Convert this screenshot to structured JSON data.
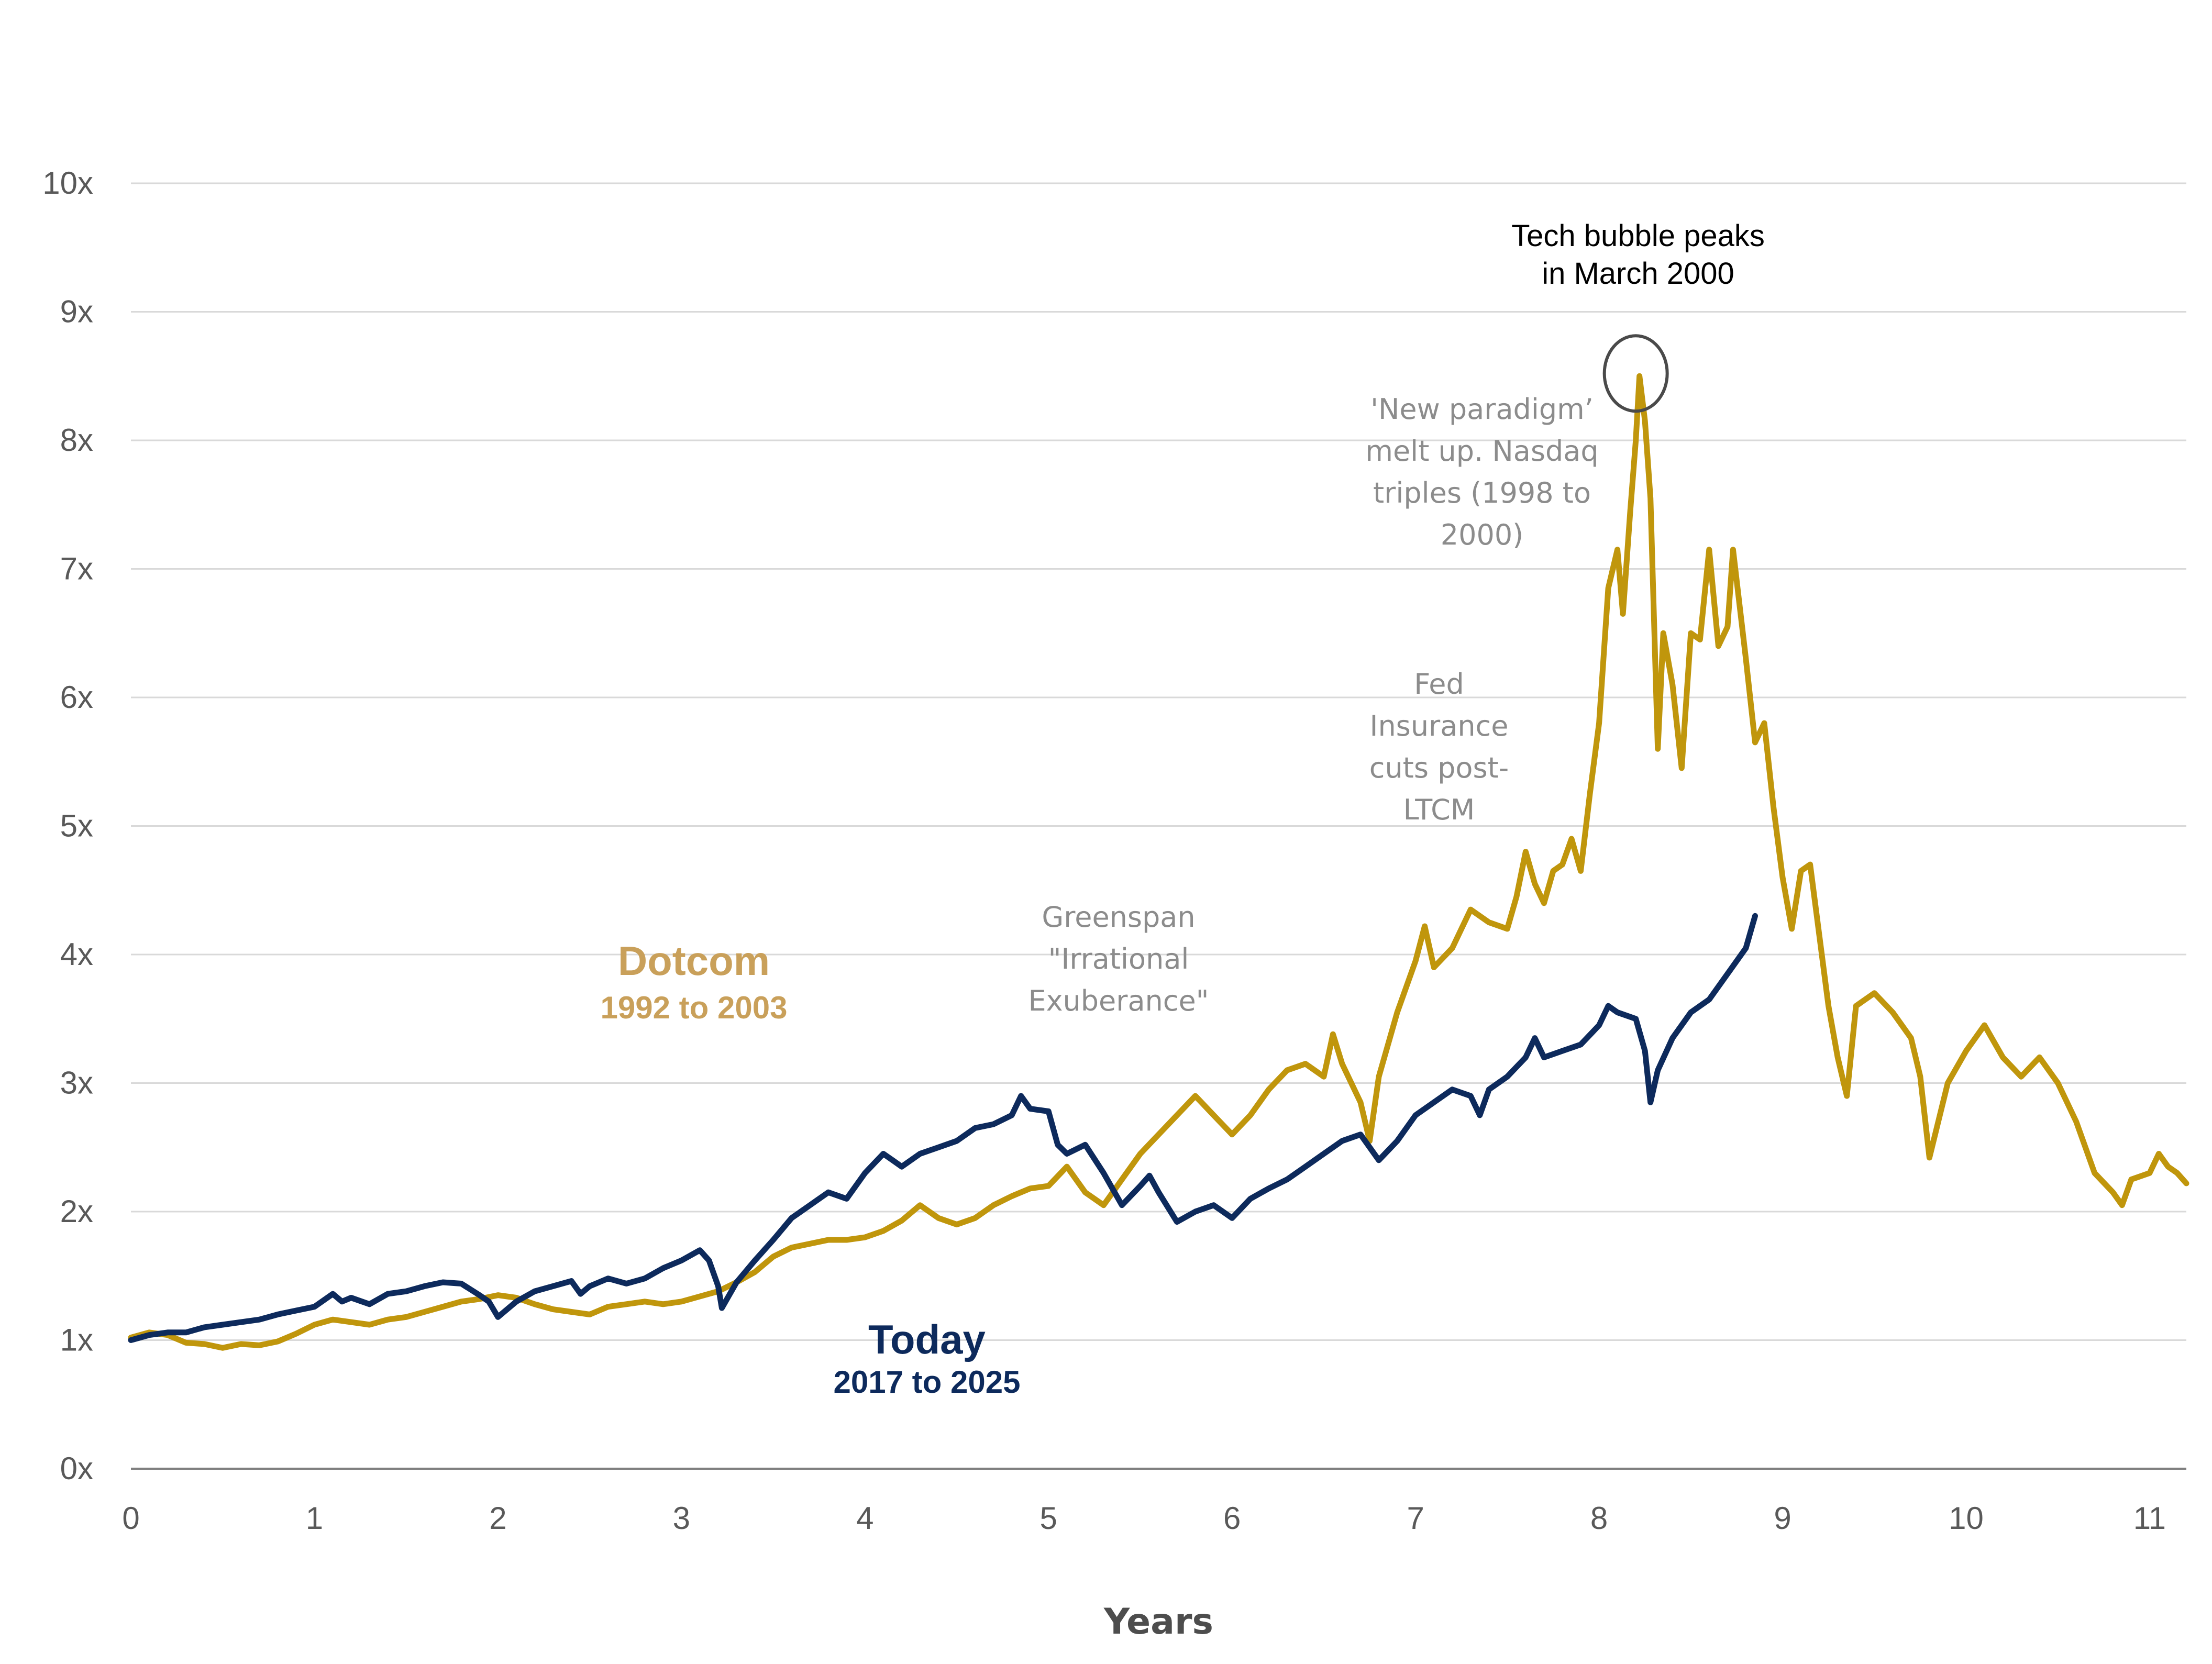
{
  "chart_data": {
    "type": "line",
    "title": "",
    "xlabel": "Years",
    "ylabel": "",
    "xlim": [
      0,
      11.2
    ],
    "ylim": [
      0,
      10
    ],
    "x_ticks": [
      0,
      1,
      2,
      3,
      4,
      5,
      6,
      7,
      8,
      9,
      10,
      11
    ],
    "y_ticks": [
      {
        "value": 0,
        "label": "0x"
      },
      {
        "value": 1,
        "label": "1x"
      },
      {
        "value": 2,
        "label": "2x"
      },
      {
        "value": 3,
        "label": "3x"
      },
      {
        "value": 4,
        "label": "4x"
      },
      {
        "value": 5,
        "label": "5x"
      },
      {
        "value": 6,
        "label": "6x"
      },
      {
        "value": 7,
        "label": "7x"
      },
      {
        "value": 8,
        "label": "8x"
      },
      {
        "value": 9,
        "label": "9x"
      },
      {
        "value": 10,
        "label": "10x"
      }
    ],
    "grid": true,
    "series": [
      {
        "name": "Dotcom",
        "period": "1992 to 2003",
        "color": "#c0960c",
        "label_color": "#c9a05a",
        "points": [
          [
            0,
            1.02
          ],
          [
            0.1,
            1.06
          ],
          [
            0.2,
            1.04
          ],
          [
            0.3,
            0.98
          ],
          [
            0.4,
            0.97
          ],
          [
            0.5,
            0.94
          ],
          [
            0.6,
            0.97
          ],
          [
            0.7,
            0.96
          ],
          [
            0.8,
            0.99
          ],
          [
            0.9,
            1.05
          ],
          [
            1.0,
            1.12
          ],
          [
            1.1,
            1.16
          ],
          [
            1.2,
            1.14
          ],
          [
            1.3,
            1.12
          ],
          [
            1.4,
            1.16
          ],
          [
            1.5,
            1.18
          ],
          [
            1.6,
            1.22
          ],
          [
            1.7,
            1.26
          ],
          [
            1.8,
            1.3
          ],
          [
            1.9,
            1.32
          ],
          [
            2.0,
            1.35
          ],
          [
            2.1,
            1.33
          ],
          [
            2.2,
            1.28
          ],
          [
            2.3,
            1.24
          ],
          [
            2.4,
            1.22
          ],
          [
            2.5,
            1.2
          ],
          [
            2.6,
            1.26
          ],
          [
            2.7,
            1.28
          ],
          [
            2.8,
            1.3
          ],
          [
            2.9,
            1.28
          ],
          [
            3.0,
            1.3
          ],
          [
            3.1,
            1.34
          ],
          [
            3.2,
            1.38
          ],
          [
            3.3,
            1.45
          ],
          [
            3.4,
            1.53
          ],
          [
            3.5,
            1.65
          ],
          [
            3.6,
            1.72
          ],
          [
            3.7,
            1.75
          ],
          [
            3.8,
            1.78
          ],
          [
            3.9,
            1.78
          ],
          [
            4.0,
            1.8
          ],
          [
            4.1,
            1.85
          ],
          [
            4.2,
            1.93
          ],
          [
            4.3,
            2.05
          ],
          [
            4.4,
            1.95
          ],
          [
            4.5,
            1.9
          ],
          [
            4.6,
            1.95
          ],
          [
            4.7,
            2.05
          ],
          [
            4.8,
            2.12
          ],
          [
            4.9,
            2.18
          ],
          [
            5.0,
            2.2
          ],
          [
            5.1,
            2.35
          ],
          [
            5.2,
            2.15
          ],
          [
            5.3,
            2.05
          ],
          [
            5.4,
            2.25
          ],
          [
            5.5,
            2.45
          ],
          [
            5.6,
            2.6
          ],
          [
            5.7,
            2.75
          ],
          [
            5.8,
            2.9
          ],
          [
            5.9,
            2.75
          ],
          [
            6.0,
            2.6
          ],
          [
            6.1,
            2.75
          ],
          [
            6.2,
            2.95
          ],
          [
            6.3,
            3.1
          ],
          [
            6.4,
            3.15
          ],
          [
            6.5,
            3.05
          ],
          [
            6.55,
            3.38
          ],
          [
            6.6,
            3.15
          ],
          [
            6.7,
            2.85
          ],
          [
            6.75,
            2.55
          ],
          [
            6.8,
            3.05
          ],
          [
            6.9,
            3.55
          ],
          [
            7.0,
            3.95
          ],
          [
            7.05,
            4.22
          ],
          [
            7.1,
            3.9
          ],
          [
            7.2,
            4.05
          ],
          [
            7.3,
            4.35
          ],
          [
            7.4,
            4.25
          ],
          [
            7.5,
            4.2
          ],
          [
            7.55,
            4.45
          ],
          [
            7.6,
            4.8
          ],
          [
            7.65,
            4.55
          ],
          [
            7.7,
            4.4
          ],
          [
            7.75,
            4.65
          ],
          [
            7.8,
            4.7
          ],
          [
            7.85,
            4.9
          ],
          [
            7.9,
            4.65
          ],
          [
            7.95,
            5.25
          ],
          [
            8.0,
            5.8
          ],
          [
            8.05,
            6.85
          ],
          [
            8.1,
            7.15
          ],
          [
            8.13,
            6.65
          ],
          [
            8.17,
            7.45
          ],
          [
            8.2,
            8.0
          ],
          [
            8.22,
            8.5
          ],
          [
            8.25,
            8.15
          ],
          [
            8.28,
            7.55
          ],
          [
            8.32,
            5.6
          ],
          [
            8.35,
            6.5
          ],
          [
            8.4,
            6.1
          ],
          [
            8.45,
            5.45
          ],
          [
            8.5,
            6.5
          ],
          [
            8.55,
            6.45
          ],
          [
            8.6,
            7.15
          ],
          [
            8.65,
            6.4
          ],
          [
            8.7,
            6.55
          ],
          [
            8.73,
            7.15
          ],
          [
            8.8,
            6.3
          ],
          [
            8.85,
            5.65
          ],
          [
            8.9,
            5.8
          ],
          [
            8.95,
            5.15
          ],
          [
            9.0,
            4.6
          ],
          [
            9.05,
            4.2
          ],
          [
            9.1,
            4.65
          ],
          [
            9.15,
            4.7
          ],
          [
            9.2,
            4.15
          ],
          [
            9.25,
            3.6
          ],
          [
            9.3,
            3.2
          ],
          [
            9.35,
            2.9
          ],
          [
            9.4,
            3.6
          ],
          [
            9.5,
            3.7
          ],
          [
            9.6,
            3.55
          ],
          [
            9.7,
            3.35
          ],
          [
            9.75,
            3.05
          ],
          [
            9.8,
            2.42
          ],
          [
            9.9,
            3.0
          ],
          [
            10.0,
            3.25
          ],
          [
            10.05,
            3.35
          ],
          [
            10.1,
            3.45
          ],
          [
            10.2,
            3.2
          ],
          [
            10.3,
            3.05
          ],
          [
            10.4,
            3.2
          ],
          [
            10.5,
            3.0
          ],
          [
            10.55,
            2.85
          ],
          [
            10.6,
            2.7
          ],
          [
            10.7,
            2.3
          ],
          [
            10.8,
            2.15
          ],
          [
            10.85,
            2.05
          ],
          [
            10.9,
            2.25
          ],
          [
            11.0,
            2.3
          ],
          [
            11.05,
            2.45
          ],
          [
            11.1,
            2.35
          ],
          [
            11.15,
            2.3
          ],
          [
            11.2,
            2.22
          ]
        ]
      },
      {
        "name": "Today",
        "period": "2017 to 2025",
        "color": "#0d2a5c",
        "label_color": "#0d2a5c",
        "points": [
          [
            0,
            1.0
          ],
          [
            0.1,
            1.04
          ],
          [
            0.2,
            1.06
          ],
          [
            0.3,
            1.06
          ],
          [
            0.4,
            1.1
          ],
          [
            0.5,
            1.12
          ],
          [
            0.6,
            1.14
          ],
          [
            0.7,
            1.16
          ],
          [
            0.8,
            1.2
          ],
          [
            0.9,
            1.23
          ],
          [
            1.0,
            1.26
          ],
          [
            1.1,
            1.36
          ],
          [
            1.15,
            1.3
          ],
          [
            1.2,
            1.33
          ],
          [
            1.3,
            1.28
          ],
          [
            1.4,
            1.36
          ],
          [
            1.5,
            1.38
          ],
          [
            1.6,
            1.42
          ],
          [
            1.7,
            1.45
          ],
          [
            1.8,
            1.44
          ],
          [
            1.9,
            1.35
          ],
          [
            1.95,
            1.3
          ],
          [
            2.0,
            1.18
          ],
          [
            2.1,
            1.3
          ],
          [
            2.2,
            1.38
          ],
          [
            2.3,
            1.42
          ],
          [
            2.4,
            1.46
          ],
          [
            2.45,
            1.36
          ],
          [
            2.5,
            1.42
          ],
          [
            2.6,
            1.48
          ],
          [
            2.7,
            1.44
          ],
          [
            2.8,
            1.48
          ],
          [
            2.9,
            1.56
          ],
          [
            3.0,
            1.62
          ],
          [
            3.1,
            1.7
          ],
          [
            3.15,
            1.62
          ],
          [
            3.2,
            1.42
          ],
          [
            3.22,
            1.25
          ],
          [
            3.3,
            1.45
          ],
          [
            3.4,
            1.62
          ],
          [
            3.5,
            1.78
          ],
          [
            3.6,
            1.95
          ],
          [
            3.7,
            2.05
          ],
          [
            3.8,
            2.15
          ],
          [
            3.9,
            2.1
          ],
          [
            4.0,
            2.3
          ],
          [
            4.1,
            2.45
          ],
          [
            4.15,
            2.4
          ],
          [
            4.2,
            2.35
          ],
          [
            4.3,
            2.45
          ],
          [
            4.4,
            2.5
          ],
          [
            4.5,
            2.55
          ],
          [
            4.6,
            2.65
          ],
          [
            4.7,
            2.68
          ],
          [
            4.8,
            2.75
          ],
          [
            4.85,
            2.9
          ],
          [
            4.9,
            2.8
          ],
          [
            5.0,
            2.78
          ],
          [
            5.05,
            2.52
          ],
          [
            5.1,
            2.45
          ],
          [
            5.2,
            2.52
          ],
          [
            5.3,
            2.3
          ],
          [
            5.4,
            2.05
          ],
          [
            5.5,
            2.2
          ],
          [
            5.55,
            2.28
          ],
          [
            5.6,
            2.15
          ],
          [
            5.7,
            1.92
          ],
          [
            5.8,
            2.0
          ],
          [
            5.9,
            2.05
          ],
          [
            6.0,
            1.95
          ],
          [
            6.1,
            2.1
          ],
          [
            6.2,
            2.18
          ],
          [
            6.3,
            2.25
          ],
          [
            6.4,
            2.35
          ],
          [
            6.5,
            2.45
          ],
          [
            6.6,
            2.55
          ],
          [
            6.7,
            2.6
          ],
          [
            6.8,
            2.4
          ],
          [
            6.9,
            2.55
          ],
          [
            7.0,
            2.75
          ],
          [
            7.1,
            2.85
          ],
          [
            7.2,
            2.95
          ],
          [
            7.3,
            2.9
          ],
          [
            7.35,
            2.75
          ],
          [
            7.4,
            2.95
          ],
          [
            7.5,
            3.05
          ],
          [
            7.6,
            3.2
          ],
          [
            7.65,
            3.35
          ],
          [
            7.7,
            3.2
          ],
          [
            7.8,
            3.25
          ],
          [
            7.9,
            3.3
          ],
          [
            8.0,
            3.45
          ],
          [
            8.05,
            3.6
          ],
          [
            8.1,
            3.55
          ],
          [
            8.2,
            3.5
          ],
          [
            8.25,
            3.25
          ],
          [
            8.28,
            2.85
          ],
          [
            8.32,
            3.1
          ],
          [
            8.4,
            3.35
          ],
          [
            8.5,
            3.55
          ],
          [
            8.6,
            3.65
          ],
          [
            8.7,
            3.85
          ],
          [
            8.8,
            4.05
          ],
          [
            8.85,
            4.3
          ]
        ]
      }
    ],
    "annotations": [
      {
        "lines": [
          "Tech bubble peaks",
          "in March 2000"
        ],
        "x": 8.2,
        "y": 8.5,
        "circle": true
      },
      {
        "lines": [
          "'New paradigm’",
          "melt up. Nasdaq",
          "triples (1998 to",
          "2000)"
        ],
        "x": 7.96,
        "y": 8.3
      },
      {
        "lines": [
          "Fed",
          "Insurance",
          "cuts post-",
          "LTCM"
        ],
        "x": 7.38,
        "y": 6.05
      },
      {
        "lines": [
          "Greenspan",
          "\"Irrational",
          "Exuberance\""
        ],
        "x": 5.38,
        "y": 4.3
      }
    ],
    "legend_placement": "inline"
  }
}
